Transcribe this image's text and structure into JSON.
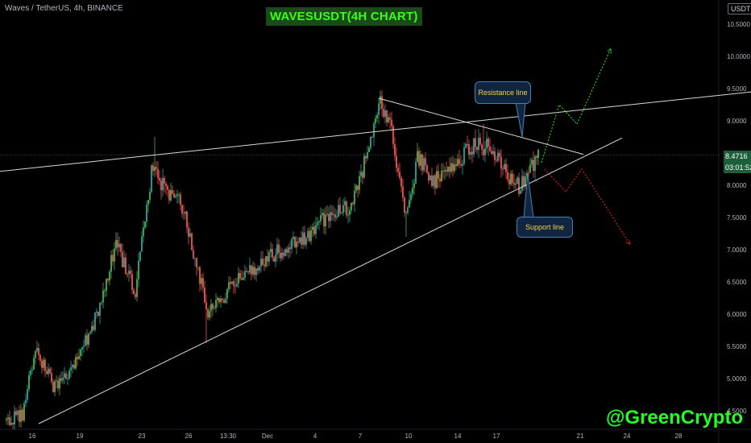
{
  "header": {
    "symbol_info": "Waves / TetherUS, 4h, BINANCE",
    "title": "WAVESUSDT(4H CHART)",
    "currency": "USDT"
  },
  "price_labels": {
    "current_price": "8.4716",
    "countdown": "03:01:52"
  },
  "annotations": {
    "resistance": "Resistance line",
    "support": "Support line"
  },
  "watermark": "@GreenCrypto",
  "colors": {
    "background": "#000000",
    "bull": "#26a69a",
    "bull_bright": "#4caf50",
    "bear": "#ef5350",
    "lines": "#d9d9d9",
    "projection_up": "#22cc22",
    "projection_down": "#cc1f1f"
  },
  "chart_data": {
    "type": "candlestick",
    "title": "WAVESUSDT(4H CHART)",
    "ylim": [
      4.3,
      10.7
    ],
    "y_ticks": [
      "10.5000",
      "10.0000",
      "9.5000",
      "9.0000",
      "8.0000",
      "7.5000",
      "7.0000",
      "6.5000",
      "6.0000",
      "5.5000",
      "5.0000",
      "4.5000"
    ],
    "x_ticks": [
      "16",
      "19",
      "23",
      "26",
      "13:30",
      "Dec",
      "4",
      "7",
      "10",
      "14",
      "17",
      "21",
      "24",
      "28"
    ],
    "current_price": 8.4716,
    "anchors": [
      {
        "i": 0,
        "p": 4.35
      },
      {
        "i": 10,
        "p": 4.45
      },
      {
        "i": 18,
        "p": 5.5
      },
      {
        "i": 30,
        "p": 4.85
      },
      {
        "i": 42,
        "p": 5.2
      },
      {
        "i": 55,
        "p": 5.9
      },
      {
        "i": 68,
        "p": 7.1
      },
      {
        "i": 80,
        "p": 6.35
      },
      {
        "i": 90,
        "p": 8.2
      },
      {
        "i": 110,
        "p": 7.65
      },
      {
        "i": 125,
        "p": 6.0
      },
      {
        "i": 140,
        "p": 6.45
      },
      {
        "i": 155,
        "p": 6.75
      },
      {
        "i": 170,
        "p": 7.0
      },
      {
        "i": 185,
        "p": 7.2
      },
      {
        "i": 200,
        "p": 7.55
      },
      {
        "i": 215,
        "p": 7.7
      },
      {
        "i": 225,
        "p": 8.6
      },
      {
        "i": 232,
        "p": 9.25
      },
      {
        "i": 238,
        "p": 8.95
      },
      {
        "i": 248,
        "p": 7.45
      },
      {
        "i": 255,
        "p": 8.45
      },
      {
        "i": 265,
        "p": 8.05
      },
      {
        "i": 275,
        "p": 8.2
      },
      {
        "i": 287,
        "p": 8.6
      },
      {
        "i": 300,
        "p": 8.6
      },
      {
        "i": 310,
        "p": 8.2
      },
      {
        "i": 318,
        "p": 7.98
      },
      {
        "i": 330,
        "p": 8.45
      }
    ],
    "spikes": [
      {
        "i": 92,
        "high": 8.75
      },
      {
        "i": 124,
        "low": 5.55
      },
      {
        "i": 231,
        "high": 9.35
      },
      {
        "i": 248,
        "low": 7.2
      },
      {
        "i": 296,
        "high": 8.95
      }
    ],
    "trendlines": [
      {
        "name": "upper channel",
        "points": [
          [
            -10,
            8.2
          ],
          [
            425,
            9.35
          ]
        ],
        "extend_to": 1000
      },
      {
        "name": "resistance line",
        "points": [
          [
            231,
            9.35
          ],
          [
            358,
            8.48
          ]
        ]
      },
      {
        "name": "support line",
        "points": [
          [
            20,
            4.3
          ],
          [
            318,
            7.95
          ]
        ],
        "extend_to": 382
      }
    ],
    "projections": [
      {
        "direction": "up",
        "points": [
          [
            332,
            8.35
          ],
          [
            343,
            9.25
          ],
          [
            354,
            8.95
          ],
          [
            375,
            10.12
          ]
        ]
      },
      {
        "direction": "down",
        "points": [
          [
            334,
            8.25
          ],
          [
            347,
            7.9
          ],
          [
            357,
            8.25
          ],
          [
            387,
            7.08
          ]
        ]
      }
    ],
    "bars": 331
  }
}
